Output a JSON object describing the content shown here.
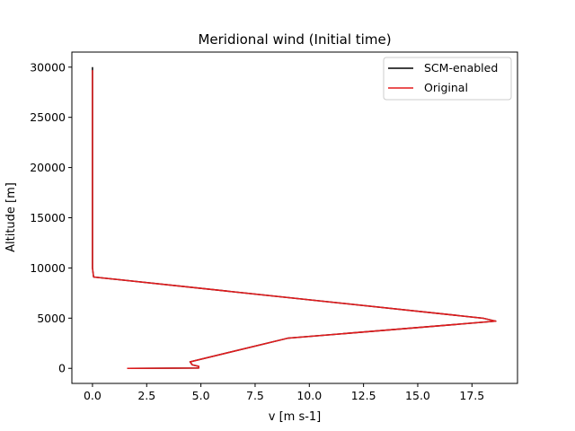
{
  "chart_data": {
    "type": "line",
    "title": "Meridional wind (Initial time)",
    "xlabel": "v [m s-1]",
    "ylabel": "Altitude [m]",
    "xlim": [
      -0.95,
      19.6
    ],
    "ylim": [
      -1500,
      31500
    ],
    "xticks": [
      0.0,
      2.5,
      5.0,
      7.5,
      10.0,
      12.5,
      15.0,
      17.5
    ],
    "xtick_labels": [
      "0.0",
      "2.5",
      "5.0",
      "7.5",
      "10.0",
      "12.5",
      "15.0",
      "17.5"
    ],
    "yticks": [
      0,
      5000,
      10000,
      15000,
      20000,
      25000,
      30000
    ],
    "ytick_labels": [
      "0",
      "5000",
      "10000",
      "15000",
      "20000",
      "25000",
      "30000"
    ],
    "grid": false,
    "legend_position": "top-right",
    "series": [
      {
        "name": "SCM-enabled",
        "color": "#000000",
        "points": [
          [
            1.6,
            0
          ],
          [
            4.9,
            30
          ],
          [
            4.9,
            200
          ],
          [
            4.6,
            350
          ],
          [
            4.5,
            650
          ],
          [
            9.0,
            3000
          ],
          [
            18.6,
            4700
          ],
          [
            18.0,
            5000
          ],
          [
            0.05,
            9100
          ],
          [
            0.0,
            10000
          ],
          [
            0.0,
            30000
          ]
        ]
      },
      {
        "name": "Original",
        "color": "#e31a1c",
        "points": [
          [
            1.6,
            0
          ],
          [
            4.9,
            30
          ],
          [
            4.9,
            200
          ],
          [
            4.6,
            350
          ],
          [
            4.5,
            650
          ],
          [
            9.0,
            3000
          ],
          [
            18.6,
            4700
          ],
          [
            18.0,
            5000
          ],
          [
            0.05,
            9100
          ],
          [
            0.0,
            10000
          ],
          [
            0.0,
            29700
          ]
        ]
      }
    ]
  }
}
